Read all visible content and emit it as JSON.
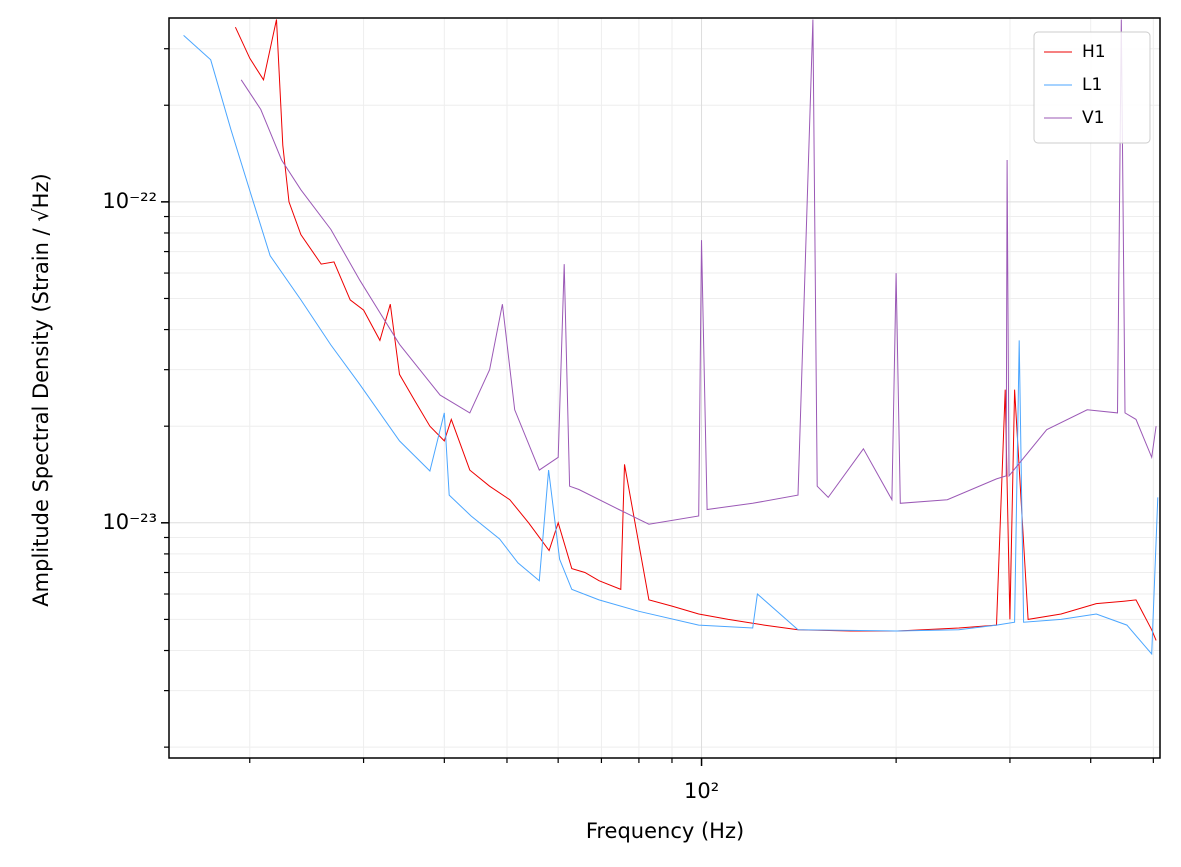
{
  "chart_data": {
    "type": "line",
    "xlabel": "Frequency (Hz)",
    "ylabel": "Amplitude Spectral Density (Strain / √Hz)",
    "xscale": "log",
    "yscale": "log",
    "grid": true,
    "legend": "upper right",
    "xlim": [
      15,
      512
    ],
    "ylim": [
      1.85e-24,
      3.74e-22
    ],
    "xticks": [
      {
        "value": 100,
        "label": "10²"
      }
    ],
    "xminorticks": [
      20,
      30,
      40,
      50,
      60,
      70,
      80,
      90,
      200,
      300,
      400,
      500
    ],
    "yticks": [
      {
        "value": 1e-23,
        "label": "10⁻²³"
      },
      {
        "value": 1e-22,
        "label": "10⁻²²"
      }
    ],
    "yminorticks": [
      2e-24,
      3e-24,
      4e-24,
      5e-24,
      6e-24,
      7e-24,
      8e-24,
      9e-24,
      2e-23,
      3e-23,
      4e-23,
      5e-23,
      6e-23,
      7e-23,
      8e-23,
      9e-23,
      2e-22,
      3e-22
    ],
    "series": [
      {
        "name": "H1",
        "color": "#ee0000",
        "x": [
          19,
          20,
          21,
          22,
          22.5,
          23,
          24,
          25.8,
          27,
          28.6,
          30,
          31.8,
          33,
          34.1,
          36,
          38,
          40,
          41,
          43.8,
          47,
          50.5,
          54,
          58.1,
          60,
          63,
          66,
          69.4,
          75,
          76,
          82.9,
          90,
          99,
          110,
          125,
          141,
          170,
          201,
          250,
          286,
          295,
          300,
          305,
          320,
          360,
          408,
          450,
          470,
          497,
          505
        ],
        "values": [
          3.5e-22,
          2.8e-22,
          2.4e-22,
          3.7e-22,
          1.5e-22,
          1e-22,
          7.9e-23,
          6.4e-23,
          6.5e-23,
          4.95e-23,
          4.6e-23,
          3.7e-23,
          4.8e-23,
          2.9e-23,
          2.4e-23,
          2e-23,
          1.8e-23,
          2.1e-23,
          1.46e-23,
          1.3e-23,
          1.18e-23,
          1e-23,
          8.2e-24,
          1e-23,
          7.2e-24,
          7e-24,
          6.6e-24,
          6.2e-24,
          1.52e-23,
          5.75e-24,
          5.5e-24,
          5.2e-24,
          5e-24,
          4.8e-24,
          4.64e-24,
          4.6e-24,
          4.6e-24,
          4.7e-24,
          4.8e-24,
          2.6e-23,
          5e-24,
          2.6e-23,
          5e-24,
          5.2e-24,
          5.6e-24,
          5.7e-24,
          5.75e-24,
          4.64e-24,
          4.3e-24
        ]
      },
      {
        "name": "L1",
        "color": "#4ba6ff",
        "x": [
          15.8,
          17.4,
          18.7,
          20.1,
          21.5,
          24,
          26.7,
          29.6,
          34.1,
          38,
          40,
          40.7,
          44,
          48.7,
          52,
          56.1,
          58,
          60.3,
          63,
          69.4,
          80,
          99,
          120,
          122,
          141,
          200,
          250,
          286,
          305,
          310,
          315,
          360,
          408,
          455,
          497,
          508
        ],
        "values": [
          3.3e-22,
          2.77e-22,
          1.68e-22,
          1.05e-22,
          6.8e-23,
          4.95e-23,
          3.58e-23,
          2.7e-23,
          1.8e-23,
          1.45e-23,
          2.2e-23,
          1.22e-23,
          1.05e-23,
          8.9e-24,
          7.5e-24,
          6.6e-24,
          1.46e-23,
          7.7e-24,
          6.2e-24,
          5.75e-24,
          5.3e-24,
          4.8e-24,
          4.7e-24,
          6e-24,
          4.64e-24,
          4.6e-24,
          4.64e-24,
          4.8e-24,
          4.9e-24,
          3.7e-23,
          4.9e-24,
          5e-24,
          5.2e-24,
          4.8e-24,
          3.9e-24,
          1.2e-23
        ]
      },
      {
        "name": "V1",
        "color": "#9b59b6",
        "x": [
          19.4,
          20.8,
          22.4,
          24,
          26.7,
          29.6,
          34.1,
          39.4,
          43.8,
          47,
          49.2,
          51.4,
          56.1,
          60,
          61.3,
          62.5,
          64.6,
          74.5,
          82.9,
          99,
          100,
          102,
          120,
          141,
          148.7,
          151,
          157,
          178,
          197,
          200,
          203,
          240,
          286,
          296,
          297,
          299,
          342,
          395,
          440,
          446,
          452,
          470,
          497,
          505
        ],
        "values": [
          2.4e-22,
          1.94e-22,
          1.35e-22,
          1.09e-22,
          8.2e-23,
          5.7e-23,
          3.6e-23,
          2.5e-23,
          2.2e-23,
          3e-23,
          4.8e-23,
          2.25e-23,
          1.46e-23,
          1.6e-23,
          6.4e-23,
          1.3e-23,
          1.27e-23,
          1.1e-23,
          9.9e-24,
          1.05e-23,
          7.6e-23,
          1.1e-23,
          1.15e-23,
          1.22e-23,
          3.7e-22,
          1.3e-23,
          1.2e-23,
          1.7e-23,
          1.18e-23,
          6e-23,
          1.15e-23,
          1.18e-23,
          1.37e-23,
          1.4e-23,
          1.35e-22,
          1.4e-23,
          1.95e-23,
          2.25e-23,
          2.2e-23,
          3.7e-22,
          2.2e-23,
          2.1e-23,
          1.6e-23,
          2e-23
        ]
      }
    ]
  }
}
